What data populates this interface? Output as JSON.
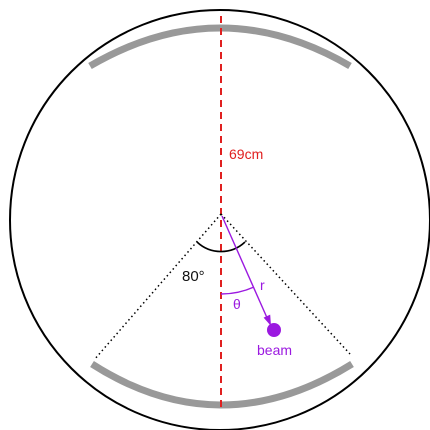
{
  "labels": {
    "distance": "69cm",
    "angle": "80°",
    "radius": "r",
    "theta": "θ",
    "beam": "beam"
  },
  "colors": {
    "outline": "#000000",
    "arc_band": "#999999",
    "axis": "#e02020",
    "beam": "#9b19e0",
    "dotted": "#000000"
  }
}
